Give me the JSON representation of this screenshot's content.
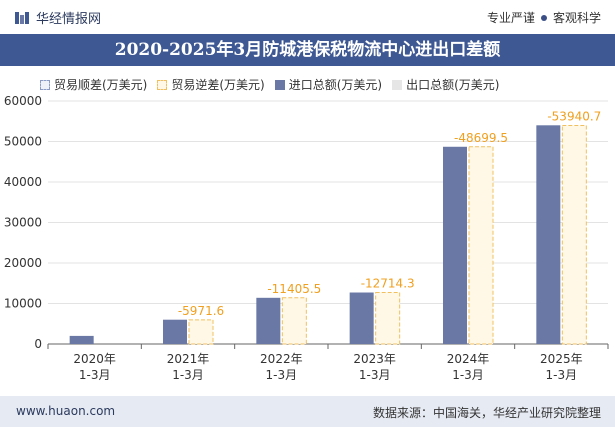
{
  "header": {
    "brand": "华经情报网",
    "tagline_left": "专业严谨",
    "tagline_right": "客观科学"
  },
  "chart_data": {
    "type": "bar",
    "title": "2020-2025年3月防城港保税物流中心进出口差额",
    "categories": [
      [
        "2020年",
        "1-3月"
      ],
      [
        "2021年",
        "1-3月"
      ],
      [
        "2022年",
        "1-3月"
      ],
      [
        "2023年",
        "1-3月"
      ],
      [
        "2024年",
        "1-3月"
      ],
      [
        "2025年",
        "1-3月"
      ]
    ],
    "series": [
      {
        "name": "贸易顺差(万美元)",
        "values": [
          0,
          0,
          0,
          0,
          0,
          0
        ]
      },
      {
        "name": "贸易逆差(万美元)",
        "values": [
          null,
          -5971.6,
          -11405.5,
          -12714.3,
          -48699.5,
          -53940.7
        ]
      },
      {
        "name": "进口总额(万美元)",
        "values": [
          2000,
          6000,
          11405.5,
          12714.3,
          48699.5,
          54000
        ]
      },
      {
        "name": "出口总额(万美元)",
        "values": [
          0,
          0,
          0,
          0,
          0,
          0
        ]
      }
    ],
    "data_labels": [
      "",
      "-5971.6",
      "-11405.5",
      "-12714.3",
      "-48699.5",
      "-53940.7"
    ],
    "ylim": [
      0,
      60000
    ],
    "yticks": [
      "0",
      "10000",
      "20000",
      "30000",
      "40000",
      "50000",
      "60000"
    ],
    "colors": {
      "import": "#6a78a6",
      "deficit_border": "#f0c060",
      "deficit_fill": "#fff8e6",
      "label": "#f0a020"
    },
    "legend_position": "top"
  },
  "footer": {
    "site": "www.huaon.com",
    "source": "数据来源：中国海关，华经产业研究院整理"
  }
}
